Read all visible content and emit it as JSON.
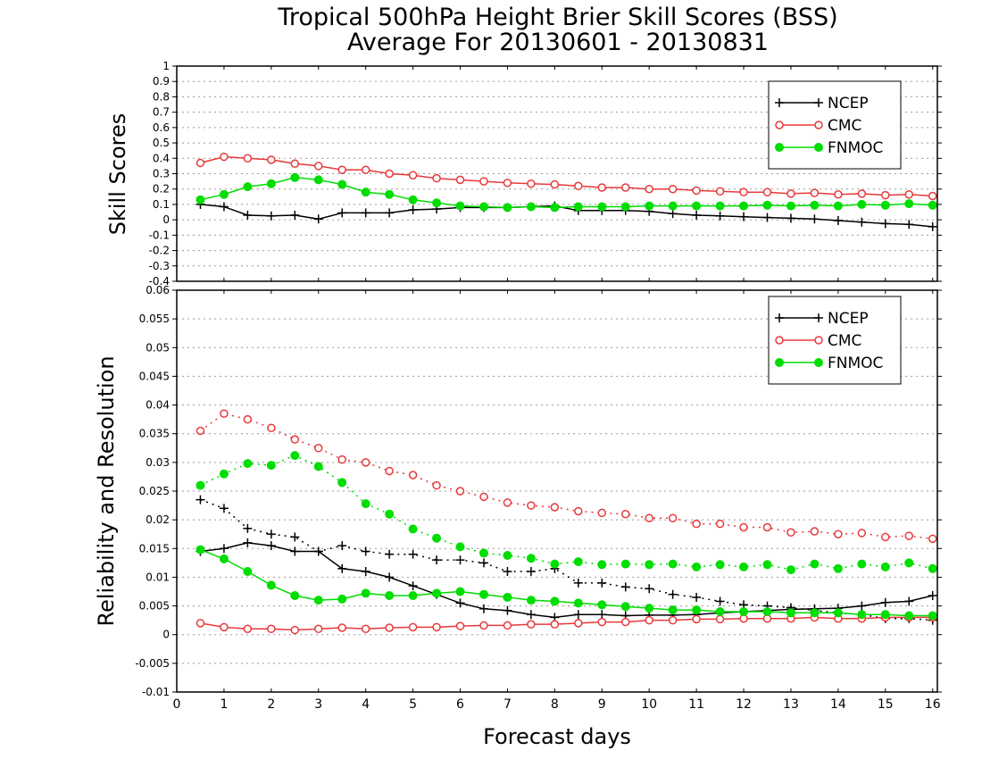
{
  "title_line1": "Tropical 500hPa Height Brier Skill Scores (BSS)",
  "title_line2": "Average For 20130601 - 20130831",
  "xlabel": "Forecast days",
  "x_ticks": [
    "0",
    "1",
    "2",
    "3",
    "4",
    "5",
    "6",
    "7",
    "8",
    "9",
    "10",
    "11",
    "12",
    "13",
    "14",
    "15",
    "16"
  ],
  "colors": {
    "NCEP": "#000000",
    "CMC": "#e8383a",
    "FNMOC": "#00dd00",
    "grid": "#9a9a9a"
  },
  "chart_data": [
    {
      "type": "line",
      "ylabel": "Skill Scores",
      "xlim": [
        0,
        16.1
      ],
      "ylim": [
        -0.4,
        1.0
      ],
      "grid": true,
      "legend_position": "top-right",
      "y_ticks": [
        "-0.4",
        "-0.3",
        "-0.2",
        "-0.1",
        "0",
        "0.1",
        "0.2",
        "0.3",
        "0.4",
        "0.5",
        "0.6",
        "0.7",
        "0.8",
        "0.9",
        "1"
      ],
      "x": [
        0.5,
        1,
        1.5,
        2,
        2.5,
        3,
        3.5,
        4,
        4.5,
        5,
        5.5,
        6,
        6.5,
        7,
        7.5,
        8,
        8.5,
        9,
        9.5,
        10,
        10.5,
        11,
        11.5,
        12,
        12.5,
        13,
        13.5,
        14,
        14.5,
        15,
        15.5,
        16
      ],
      "series": [
        {
          "name": "NCEP",
          "marker": "plus",
          "style": "solid",
          "values": [
            0.1,
            0.085,
            0.03,
            0.025,
            0.03,
            0.005,
            0.045,
            0.045,
            0.045,
            0.065,
            0.07,
            0.08,
            0.08,
            0.08,
            0.085,
            0.09,
            0.06,
            0.06,
            0.06,
            0.055,
            0.04,
            0.03,
            0.025,
            0.02,
            0.015,
            0.01,
            0.005,
            -0.005,
            -0.015,
            -0.025,
            -0.03,
            -0.045
          ]
        },
        {
          "name": "CMC",
          "marker": "open-circle",
          "style": "solid",
          "values": [
            0.37,
            0.41,
            0.4,
            0.39,
            0.365,
            0.35,
            0.325,
            0.325,
            0.3,
            0.29,
            0.27,
            0.26,
            0.25,
            0.24,
            0.235,
            0.23,
            0.22,
            0.21,
            0.21,
            0.2,
            0.2,
            0.19,
            0.185,
            0.18,
            0.18,
            0.17,
            0.175,
            0.165,
            0.17,
            0.16,
            0.165,
            0.155
          ]
        },
        {
          "name": "FNMOC",
          "marker": "filled-circle",
          "style": "solid",
          "values": [
            0.13,
            0.165,
            0.215,
            0.235,
            0.275,
            0.26,
            0.23,
            0.18,
            0.165,
            0.13,
            0.11,
            0.09,
            0.085,
            0.08,
            0.085,
            0.08,
            0.085,
            0.085,
            0.085,
            0.09,
            0.09,
            0.09,
            0.09,
            0.09,
            0.095,
            0.09,
            0.095,
            0.09,
            0.1,
            0.095,
            0.105,
            0.095
          ]
        }
      ]
    },
    {
      "type": "line",
      "ylabel": "Reliability and Resolution",
      "xlim": [
        0,
        16.1
      ],
      "ylim": [
        -0.01,
        0.06
      ],
      "grid": true,
      "legend_position": "top-right",
      "y_ticks": [
        "-0.01",
        "-0.005",
        "0",
        "0.005",
        "0.01",
        "0.015",
        "0.02",
        "0.025",
        "0.03",
        "0.035",
        "0.04",
        "0.045",
        "0.05",
        "0.055",
        "0.06"
      ],
      "x": [
        0.5,
        1,
        1.5,
        2,
        2.5,
        3,
        3.5,
        4,
        4.5,
        5,
        5.5,
        6,
        6.5,
        7,
        7.5,
        8,
        8.5,
        9,
        9.5,
        10,
        10.5,
        11,
        11.5,
        12,
        12.5,
        13,
        13.5,
        14,
        14.5,
        15,
        15.5,
        16
      ],
      "series": [
        {
          "name": "NCEP",
          "legend": "NCEP",
          "role": "reliability",
          "marker": "plus",
          "style": "solid",
          "values": [
            0.0145,
            0.015,
            0.016,
            0.0155,
            0.0145,
            0.0145,
            0.0115,
            0.011,
            0.01,
            0.0085,
            0.007,
            0.0055,
            0.0045,
            0.0042,
            0.0035,
            0.003,
            0.0035,
            0.0035,
            0.0033,
            0.0034,
            0.0034,
            0.0035,
            0.0038,
            0.004,
            0.0042,
            0.0044,
            0.0045,
            0.0046,
            0.005,
            0.0056,
            0.0058,
            0.0068
          ]
        },
        {
          "name": "NCEP",
          "legend": null,
          "role": "resolution",
          "marker": "plus",
          "style": "dotted",
          "values": [
            0.0235,
            0.022,
            0.0185,
            0.0175,
            0.017,
            0.0145,
            0.0155,
            0.0145,
            0.014,
            0.014,
            0.013,
            0.013,
            0.0125,
            0.011,
            0.011,
            0.0115,
            0.009,
            0.009,
            0.0083,
            0.008,
            0.007,
            0.0065,
            0.0058,
            0.0052,
            0.005,
            0.0047,
            0.0042,
            0.0038,
            0.0035,
            0.0028,
            0.0028,
            0.0025
          ]
        },
        {
          "name": "CMC",
          "legend": "CMC",
          "role": "reliability",
          "marker": "open-circle",
          "style": "solid",
          "values": [
            0.002,
            0.0013,
            0.001,
            0.001,
            0.0008,
            0.001,
            0.0012,
            0.001,
            0.0012,
            0.0013,
            0.0013,
            0.0015,
            0.0016,
            0.0016,
            0.0018,
            0.0018,
            0.002,
            0.0022,
            0.0022,
            0.0025,
            0.0025,
            0.0027,
            0.0027,
            0.0028,
            0.0028,
            0.0028,
            0.003,
            0.0028,
            0.0028,
            0.003,
            0.003,
            0.003
          ]
        },
        {
          "name": "CMC",
          "legend": null,
          "role": "resolution",
          "marker": "open-circle",
          "style": "dotted",
          "values": [
            0.0355,
            0.0385,
            0.0375,
            0.036,
            0.034,
            0.0325,
            0.0305,
            0.03,
            0.0285,
            0.0278,
            0.026,
            0.025,
            0.024,
            0.023,
            0.0225,
            0.0222,
            0.0215,
            0.0212,
            0.021,
            0.0203,
            0.0203,
            0.0193,
            0.0193,
            0.0187,
            0.0187,
            0.0178,
            0.018,
            0.0175,
            0.0177,
            0.017,
            0.0172,
            0.0167
          ]
        },
        {
          "name": "FNMOC",
          "legend": "FNMOC",
          "role": "reliability",
          "marker": "filled-circle",
          "style": "solid",
          "values": [
            0.0148,
            0.0132,
            0.011,
            0.0086,
            0.0068,
            0.006,
            0.0062,
            0.0072,
            0.0068,
            0.0068,
            0.0072,
            0.0075,
            0.007,
            0.0065,
            0.006,
            0.0058,
            0.0055,
            0.0052,
            0.0049,
            0.0046,
            0.0043,
            0.0043,
            0.004,
            0.004,
            0.004,
            0.0038,
            0.0038,
            0.0038,
            0.0035,
            0.0035,
            0.0033,
            0.0033
          ]
        },
        {
          "name": "FNMOC",
          "legend": null,
          "role": "resolution",
          "marker": "filled-circle",
          "style": "dotted",
          "values": [
            0.026,
            0.028,
            0.0298,
            0.0295,
            0.0312,
            0.0293,
            0.0265,
            0.0228,
            0.021,
            0.0184,
            0.0168,
            0.0153,
            0.0142,
            0.0138,
            0.0133,
            0.0123,
            0.0127,
            0.0122,
            0.0123,
            0.0122,
            0.0123,
            0.0118,
            0.0122,
            0.0118,
            0.0122,
            0.0113,
            0.0123,
            0.0115,
            0.0123,
            0.0118,
            0.0125,
            0.0115
          ]
        }
      ]
    }
  ]
}
